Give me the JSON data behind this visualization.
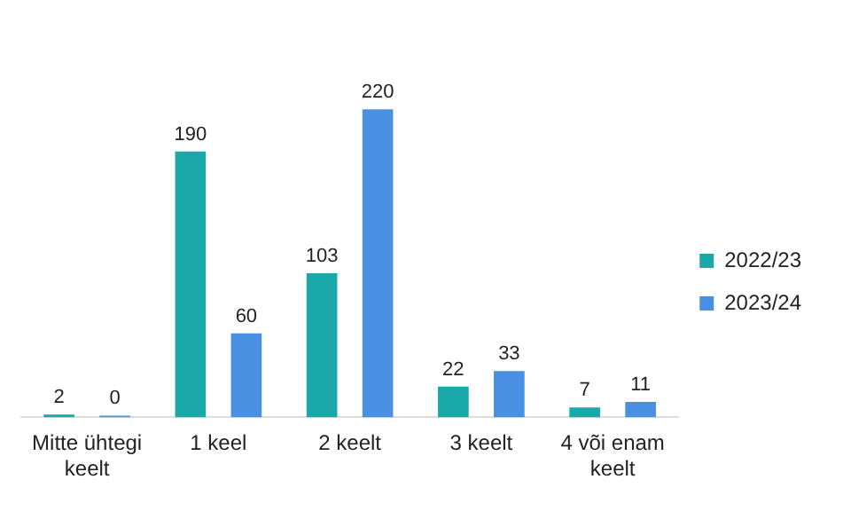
{
  "chart_data": {
    "type": "bar",
    "categories": [
      "Mitte ühtegi keelt",
      "1 keel",
      "2 keelt",
      "3 keelt",
      "4 või enam keelt"
    ],
    "series": [
      {
        "name": "2022/23",
        "color": "#1aa8a8",
        "values": [
          2,
          190,
          103,
          22,
          7
        ]
      },
      {
        "name": "2023/24",
        "color": "#4a90e2",
        "values": [
          0,
          60,
          220,
          33,
          11
        ]
      }
    ],
    "data_labels": true,
    "legend": "right",
    "grid": false
  }
}
